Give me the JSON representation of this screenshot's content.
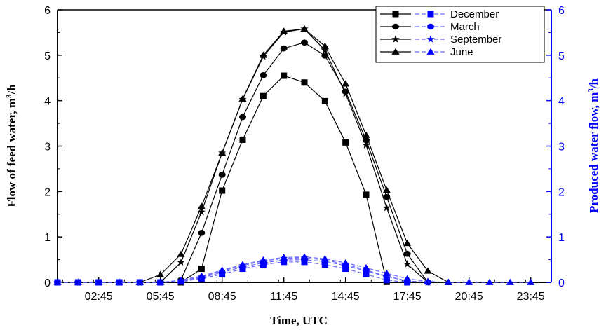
{
  "chart_data": {
    "type": "line",
    "xlabel": "Time, UTC",
    "ylabel_left": "Flow of feed water, m",
    "ylabel_left_sup": "3",
    "ylabel_left_suffix": "/h",
    "ylabel_right": "Produced water flow, m",
    "ylabel_right_sup": "3",
    "ylabel_right_suffix": "/h",
    "ylim_left": [
      0,
      6
    ],
    "ylim_right": [
      0,
      6
    ],
    "yticks_left": [
      "0",
      "1",
      "2",
      "3",
      "4",
      "5",
      "6"
    ],
    "yticks_right": [
      "0",
      "1",
      "2",
      "3",
      "4",
      "5",
      "6"
    ],
    "xlim": [
      0.75,
      24.75
    ],
    "xticks": [
      {
        "x": 2.75,
        "label": "02:45"
      },
      {
        "x": 5.75,
        "label": "05:45"
      },
      {
        "x": 8.75,
        "label": "08:45"
      },
      {
        "x": 11.75,
        "label": "11:45"
      },
      {
        "x": 14.75,
        "label": "14:45"
      },
      {
        "x": 17.75,
        "label": "17:45"
      },
      {
        "x": 20.75,
        "label": "20:45"
      },
      {
        "x": 23.75,
        "label": "23:45"
      }
    ],
    "legend_position": "top-right",
    "colors": {
      "feed": "#000000",
      "produced": "#0000ff",
      "produced_line": "#6a6aff"
    },
    "series": [
      {
        "name": "December",
        "marker": "square",
        "axis": "left",
        "feed": [
          [
            6.75,
            0
          ],
          [
            7.75,
            0.3
          ],
          [
            8.75,
            2.02
          ],
          [
            9.75,
            3.14
          ],
          [
            10.75,
            4.1
          ],
          [
            11.75,
            4.55
          ],
          [
            12.75,
            4.4
          ],
          [
            13.75,
            3.99
          ],
          [
            14.75,
            3.08
          ],
          [
            15.75,
            1.93
          ],
          [
            16.75,
            0.01
          ]
        ],
        "produced": [
          [
            0.75,
            0
          ],
          [
            1.75,
            0
          ],
          [
            2.75,
            0
          ],
          [
            3.75,
            0
          ],
          [
            4.75,
            0
          ],
          [
            5.75,
            0
          ],
          [
            6.75,
            0.02
          ],
          [
            7.75,
            0.08
          ],
          [
            8.75,
            0.18
          ],
          [
            9.75,
            0.3
          ],
          [
            10.75,
            0.39
          ],
          [
            11.75,
            0.45
          ],
          [
            12.75,
            0.45
          ],
          [
            13.75,
            0.39
          ],
          [
            14.75,
            0.3
          ],
          [
            15.75,
            0.18
          ],
          [
            16.75,
            0.05
          ],
          [
            17.75,
            0
          ]
        ]
      },
      {
        "name": "March",
        "marker": "circle",
        "axis": "left",
        "feed": [
          [
            6.75,
            0.05
          ],
          [
            7.75,
            1.09
          ],
          [
            8.75,
            2.37
          ],
          [
            9.75,
            3.64
          ],
          [
            10.75,
            4.56
          ],
          [
            11.75,
            5.15
          ],
          [
            12.75,
            5.28
          ],
          [
            13.75,
            4.99
          ],
          [
            14.75,
            4.2
          ],
          [
            15.75,
            3.13
          ],
          [
            16.75,
            1.88
          ],
          [
            17.75,
            0.63
          ],
          [
            18.75,
            0
          ]
        ],
        "produced": [
          [
            0.75,
            0
          ],
          [
            1.75,
            0
          ],
          [
            2.75,
            0
          ],
          [
            3.75,
            0
          ],
          [
            4.75,
            0
          ],
          [
            5.75,
            0
          ],
          [
            6.75,
            0.02
          ],
          [
            7.75,
            0.1
          ],
          [
            8.75,
            0.22
          ],
          [
            9.75,
            0.34
          ],
          [
            10.75,
            0.43
          ],
          [
            11.75,
            0.49
          ],
          [
            12.75,
            0.5
          ],
          [
            13.75,
            0.46
          ],
          [
            14.75,
            0.37
          ],
          [
            15.75,
            0.25
          ],
          [
            16.75,
            0.13
          ],
          [
            17.75,
            0.03
          ],
          [
            18.75,
            0
          ]
        ]
      },
      {
        "name": "September",
        "marker": "star",
        "axis": "left",
        "feed": [
          [
            5.75,
            0
          ],
          [
            6.75,
            0.44
          ],
          [
            7.75,
            1.55
          ],
          [
            8.75,
            2.85
          ],
          [
            9.75,
            4.03
          ],
          [
            10.75,
            4.97
          ],
          [
            11.75,
            5.51
          ],
          [
            12.75,
            5.58
          ],
          [
            13.75,
            5.11
          ],
          [
            14.75,
            4.15
          ],
          [
            15.75,
            3.02
          ],
          [
            16.75,
            1.64
          ],
          [
            17.75,
            0.4
          ],
          [
            18.75,
            0
          ]
        ],
        "produced": [
          [
            0.75,
            0
          ],
          [
            1.75,
            0
          ],
          [
            2.75,
            0
          ],
          [
            3.75,
            0
          ],
          [
            4.75,
            0
          ],
          [
            5.75,
            0
          ],
          [
            6.75,
            0.03
          ],
          [
            7.75,
            0.12
          ],
          [
            8.75,
            0.25
          ],
          [
            9.75,
            0.37
          ],
          [
            10.75,
            0.47
          ],
          [
            11.75,
            0.53
          ],
          [
            12.75,
            0.54
          ],
          [
            13.75,
            0.49
          ],
          [
            14.75,
            0.4
          ],
          [
            15.75,
            0.27
          ],
          [
            16.75,
            0.14
          ],
          [
            17.75,
            0.03
          ],
          [
            18.75,
            0
          ]
        ]
      },
      {
        "name": "June",
        "marker": "triangle",
        "axis": "left",
        "feed": [
          [
            4.75,
            0
          ],
          [
            5.75,
            0.17
          ],
          [
            6.75,
            0.62
          ],
          [
            7.75,
            1.67
          ],
          [
            8.75,
            2.85
          ],
          [
            9.75,
            4.04
          ],
          [
            10.75,
            5.0
          ],
          [
            11.75,
            5.53
          ],
          [
            12.75,
            5.58
          ],
          [
            13.75,
            5.2
          ],
          [
            14.75,
            4.37
          ],
          [
            15.75,
            3.24
          ],
          [
            16.75,
            2.03
          ],
          [
            17.75,
            0.86
          ],
          [
            18.75,
            0.25
          ],
          [
            19.75,
            0
          ]
        ],
        "produced": [
          [
            0.75,
            0
          ],
          [
            1.75,
            0
          ],
          [
            2.75,
            0
          ],
          [
            3.75,
            0
          ],
          [
            4.75,
            0
          ],
          [
            5.75,
            0
          ],
          [
            6.75,
            0.05
          ],
          [
            7.75,
            0.14
          ],
          [
            8.75,
            0.27
          ],
          [
            9.75,
            0.39
          ],
          [
            10.75,
            0.49
          ],
          [
            11.75,
            0.55
          ],
          [
            12.75,
            0.56
          ],
          [
            13.75,
            0.52
          ],
          [
            14.75,
            0.43
          ],
          [
            15.75,
            0.32
          ],
          [
            16.75,
            0.2
          ],
          [
            17.75,
            0.08
          ],
          [
            18.75,
            0.02
          ],
          [
            19.75,
            0
          ],
          [
            20.75,
            0
          ],
          [
            21.75,
            0
          ],
          [
            22.75,
            0
          ],
          [
            23.75,
            0
          ]
        ]
      }
    ]
  }
}
